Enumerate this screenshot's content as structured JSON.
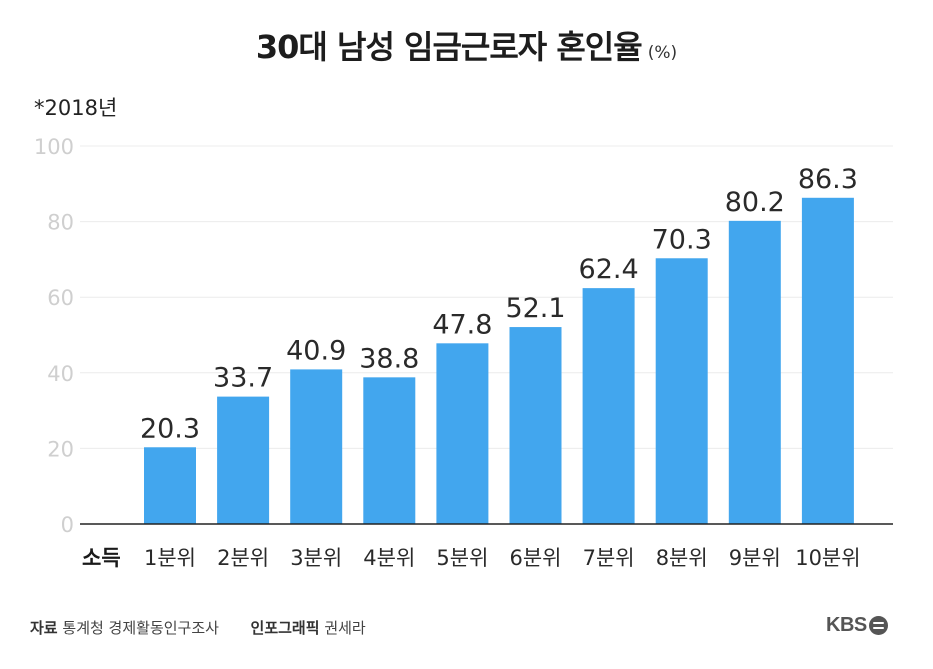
{
  "chart_data": {
    "type": "bar",
    "title": "30대 남성 임금근로자 혼인율",
    "unit": "(%)",
    "note": "*2018년",
    "xlabel": "소득",
    "categories": [
      "1분위",
      "2분위",
      "3분위",
      "4분위",
      "5분위",
      "6분위",
      "7분위",
      "8분위",
      "9분위",
      "10분위"
    ],
    "values": [
      20.3,
      33.7,
      40.9,
      38.8,
      47.8,
      52.1,
      62.4,
      70.3,
      80.2,
      86.3
    ],
    "value_labels": [
      "20.3",
      "33.7",
      "40.9",
      "38.8",
      "47.8",
      "52.1",
      "62.4",
      "70.3",
      "80.2",
      "86.3"
    ],
    "ylim": [
      0,
      100
    ],
    "yticks": [
      "0",
      "20",
      "40",
      "60",
      "80",
      "100"
    ],
    "grid": true,
    "bar_color": "#42a6ee"
  },
  "footer": {
    "source_label": "자료",
    "source_text": "통계청 경제활동인구조사",
    "credit_label": "인포그래픽",
    "credit_text": "권세라"
  },
  "logo_text": "KBS"
}
